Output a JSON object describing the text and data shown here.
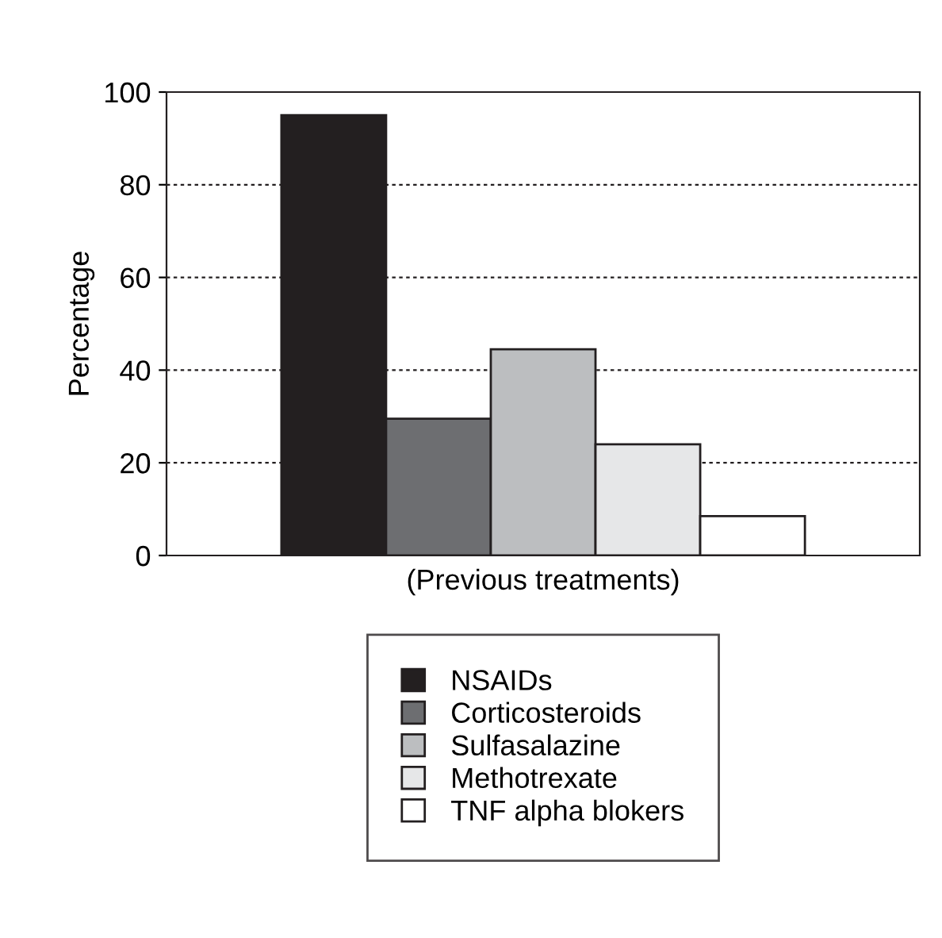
{
  "chart_data": {
    "type": "bar",
    "ylabel": "Percentage",
    "categories": [
      "(Previous treatments)"
    ],
    "series": [
      {
        "name": "NSAIDs",
        "color": "#231f20",
        "values": [
          95
        ]
      },
      {
        "name": "Corticosteroids",
        "color": "#6d6e71",
        "values": [
          29.5
        ]
      },
      {
        "name": "Sulfasalazine",
        "color": "#bcbec0",
        "values": [
          44.5
        ]
      },
      {
        "name": "Methotrexate",
        "color": "#e6e7e8",
        "values": [
          24
        ]
      },
      {
        "name": "TNF alpha blokers",
        "color": "#ffffff",
        "values": [
          8.5
        ]
      }
    ],
    "ylim": [
      0,
      100
    ],
    "yticks": [
      0,
      20,
      40,
      60,
      80,
      100
    ],
    "grid": "y",
    "legend": "bottom"
  }
}
